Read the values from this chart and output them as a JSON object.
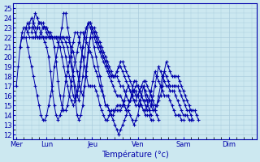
{
  "title": "Température (°c)",
  "ylim": [
    11.5,
    25.5
  ],
  "background_color": "#cce8f0",
  "grid_color": "#aaccdd",
  "line_color": "#0000aa",
  "marker": "+",
  "day_labels": [
    "Mer",
    "Lun",
    "Jeu",
    "Ven",
    "Sam",
    "Dim"
  ],
  "day_positions": [
    0,
    48,
    120,
    192,
    264,
    336
  ],
  "xlim": [
    -5,
    380
  ],
  "total_hours": 384,
  "series": [
    {
      "start_hour": 0,
      "values": [
        17,
        19,
        21,
        22,
        22,
        22,
        21,
        20,
        19,
        18,
        17,
        16,
        15,
        14,
        13.5,
        13.5,
        14,
        15,
        16,
        17,
        19,
        20,
        21,
        22,
        23,
        24.5,
        24.5,
        23,
        22,
        20,
        18,
        16,
        14,
        13.5,
        14,
        15,
        17,
        19,
        21,
        22,
        22,
        21,
        20,
        19,
        18,
        17,
        16,
        15,
        15,
        14.5,
        14,
        13.5,
        13,
        12.5,
        12,
        12.5,
        13,
        13.5,
        14,
        14.5,
        14,
        13.5,
        13,
        13.5,
        14,
        15,
        16,
        17,
        16,
        15.5,
        14.5,
        14
      ]
    },
    {
      "start_hour": 6,
      "values": [
        21,
        22.5,
        23,
        23,
        22.5,
        22,
        22,
        22,
        22,
        22,
        22,
        22,
        22,
        21.5,
        21,
        20,
        18.5,
        16.5,
        15,
        14,
        13.5,
        14,
        14.5,
        16,
        17.5,
        18.5,
        19.5,
        20.5,
        21.5,
        22.5,
        22.5,
        22,
        21,
        20,
        19,
        18,
        17,
        17,
        17,
        17,
        16.5,
        16,
        15,
        14.5,
        14,
        13.5,
        13.5,
        14,
        14.5,
        14.5,
        14.5,
        14.5,
        14.5,
        14.5,
        15,
        15.5,
        16.5,
        17,
        16.5,
        16,
        15.5,
        15,
        15,
        15.5,
        15,
        14.5,
        14,
        14,
        14,
        13.5,
        13.5
      ]
    },
    {
      "start_hour": 12,
      "values": [
        22,
        23,
        23.5,
        23,
        23,
        23,
        22.5,
        22,
        22,
        22,
        22,
        22,
        22,
        22,
        22,
        22,
        21,
        19.5,
        17.5,
        16,
        15,
        14.5,
        14.5,
        15,
        16,
        17.5,
        18.5,
        19.5,
        20.5,
        21.5,
        22.5,
        22.5,
        22,
        21.5,
        21,
        20.5,
        20,
        19,
        18.5,
        18,
        17,
        16.5,
        16,
        15,
        15,
        14.5,
        14,
        14,
        14.5,
        15,
        15,
        15,
        15,
        15,
        14.5,
        15,
        15.5,
        16.5,
        17.5,
        17.5,
        17,
        16.5,
        16,
        15.5,
        15.5,
        15.5,
        15.5,
        15.5,
        15,
        14.5,
        14,
        13.5
      ]
    },
    {
      "start_hour": 18,
      "values": [
        22.5,
        23.5,
        24,
        23.5,
        23,
        23,
        23,
        22.5,
        22,
        22,
        22,
        22,
        22,
        22,
        22,
        22,
        21.5,
        21,
        20,
        19,
        18,
        17,
        16,
        15.5,
        15,
        15.5,
        16.5,
        18,
        19.5,
        21,
        22,
        23,
        23.5,
        23,
        22.5,
        22,
        21.5,
        21,
        20.5,
        20,
        19.5,
        19,
        18.5,
        18,
        17.5,
        17,
        16.5,
        16,
        16,
        16,
        15.5,
        15,
        14.5,
        15,
        15.5,
        16,
        16.5,
        16.5,
        16,
        15.5,
        15,
        14.5,
        14.5,
        15,
        15.5,
        16.5,
        17.5,
        18.5,
        18,
        17.5,
        17,
        16.5,
        16,
        16,
        16,
        15.5,
        15,
        14.5,
        14,
        14,
        14,
        13.5,
        13.5
      ]
    },
    {
      "start_hour": 24,
      "values": [
        22.5,
        23.5,
        24.5,
        24,
        23.5,
        23.5,
        23,
        23,
        22.5,
        22,
        22,
        22,
        22,
        22,
        22,
        22,
        21.5,
        21,
        20,
        19,
        18,
        17,
        16,
        15.5,
        16,
        17,
        19,
        21,
        22.5,
        23,
        23.5,
        23.5,
        23,
        22.5,
        22,
        21.5,
        21,
        20.5,
        20,
        19.5,
        19,
        18.5,
        18,
        18,
        18,
        18,
        17.5,
        17,
        17,
        16.5,
        16,
        15.5,
        15.5,
        16,
        16.5,
        17,
        17,
        16.5,
        16,
        15.5,
        15,
        14.5,
        14.5,
        15,
        16,
        17,
        18,
        19,
        18.5,
        18,
        17.5,
        17,
        17,
        16.5,
        16.5,
        16.5,
        16,
        15.5,
        15,
        14.5,
        14,
        14,
        14,
        13.5,
        13.5
      ]
    },
    {
      "start_hour": 30,
      "values": [
        22,
        23,
        23.5,
        23.5,
        23.5,
        23,
        23,
        22.5,
        22,
        22,
        22,
        22,
        22,
        22,
        22,
        22,
        21.5,
        21,
        20,
        19,
        18,
        17,
        16,
        15.5,
        16.5,
        18,
        20,
        22,
        23.5,
        23.5,
        23,
        22.5,
        22,
        21.5,
        21,
        20.5,
        20,
        19.5,
        19,
        18.5,
        18,
        18,
        18,
        18.5,
        19,
        19,
        18.5,
        18,
        17.5,
        17,
        16.5,
        16,
        15.5,
        15.5,
        16,
        16.5,
        17,
        17,
        16.5,
        16,
        15.5,
        15,
        14.5,
        14.5,
        15,
        16,
        17,
        18,
        18.5,
        18,
        17.5,
        17,
        17,
        17,
        17,
        17,
        16.5,
        16,
        15.5,
        15,
        14.5,
        14.5,
        14,
        13.5
      ]
    },
    {
      "start_hour": 36,
      "values": [
        22,
        22.5,
        23,
        23,
        23,
        22.5,
        22.5,
        22,
        22,
        22,
        22,
        22,
        22,
        22,
        22,
        22,
        21.5,
        21,
        20.5,
        19.5,
        18.5,
        17.5,
        16.5,
        16,
        17,
        18.5,
        20.5,
        22,
        23,
        23,
        22.5,
        22,
        21.5,
        21,
        20.5,
        20,
        19.5,
        19,
        18.5,
        18,
        18,
        18.5,
        19,
        19.5,
        19.5,
        19,
        18.5,
        18,
        17.5,
        17,
        16.5,
        16,
        16,
        16.5,
        17,
        17.5,
        17.5,
        17,
        16.5,
        16,
        15.5,
        15,
        15,
        15.5,
        16,
        17,
        18.5,
        19.5,
        19,
        18.5,
        18,
        18,
        18,
        18,
        17.5,
        17,
        16.5,
        16,
        15.5,
        15,
        14.5,
        14.5,
        14.5,
        14,
        13.5
      ]
    }
  ]
}
